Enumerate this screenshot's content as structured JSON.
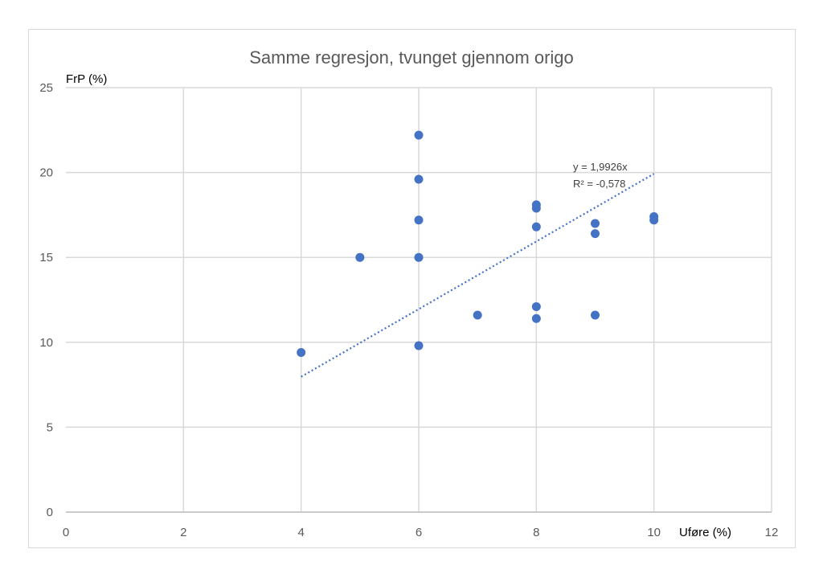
{
  "chart_data": {
    "type": "scatter",
    "title": "Samme regresjon, tvunget gjennom origo",
    "xlabel": "Uføre (%)",
    "ylabel": "FrP (%)",
    "xlim": [
      0,
      12
    ],
    "ylim": [
      0,
      25
    ],
    "x_ticks": [
      0,
      2,
      4,
      6,
      8,
      10,
      12
    ],
    "y_ticks": [
      0,
      5,
      10,
      15,
      20,
      25
    ],
    "grid": true,
    "colors": {
      "points": "#4472c4",
      "trendline": "#4472c4",
      "grid": "#d9d9d9"
    },
    "series": [
      {
        "points": [
          {
            "x": 4,
            "y": 9.4
          },
          {
            "x": 5,
            "y": 15.0
          },
          {
            "x": 6,
            "y": 22.2
          },
          {
            "x": 6,
            "y": 19.6
          },
          {
            "x": 6,
            "y": 17.2
          },
          {
            "x": 6,
            "y": 15.0
          },
          {
            "x": 6,
            "y": 9.8
          },
          {
            "x": 7,
            "y": 11.6
          },
          {
            "x": 8,
            "y": 18.1
          },
          {
            "x": 8,
            "y": 17.9
          },
          {
            "x": 8,
            "y": 16.8
          },
          {
            "x": 8,
            "y": 12.1
          },
          {
            "x": 8,
            "y": 11.4
          },
          {
            "x": 9,
            "y": 17.0
          },
          {
            "x": 9,
            "y": 16.4
          },
          {
            "x": 9,
            "y": 11.6
          },
          {
            "x": 10,
            "y": 17.4
          },
          {
            "x": 10,
            "y": 17.2
          }
        ]
      }
    ],
    "trendline": {
      "slope": 1.9926,
      "intercept": 0,
      "x_range": [
        4,
        10
      ],
      "equation": "y = 1,9926x",
      "r_squared": "R² = -0,578"
    }
  }
}
